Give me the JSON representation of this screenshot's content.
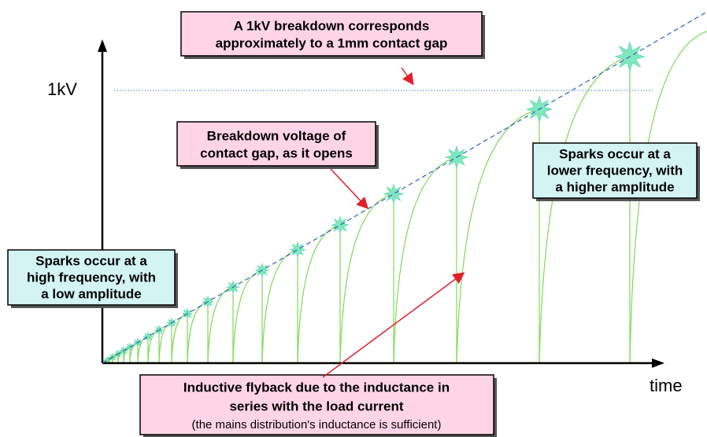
{
  "axis": {
    "y_label": "1kV",
    "x_label": "time"
  },
  "annotations": [
    {
      "lines": [
        "A 1kV breakdown corresponds",
        "approximately to a 1mm contact gap"
      ]
    },
    {
      "lines": [
        "Breakdown voltage of",
        "contact gap, as it opens"
      ]
    },
    {
      "lines": [
        "Sparks occur at a",
        "high frequency, with",
        "a low amplitude"
      ]
    },
    {
      "lines": [
        "Sparks occur at a",
        "lower frequency, with",
        "a higher amplitude"
      ]
    },
    {
      "lines": [
        "Inductive flyback due to the inductance in",
        "series with the load current",
        "(the mains distribution's inductance is sufficient)"
      ]
    }
  ]
}
